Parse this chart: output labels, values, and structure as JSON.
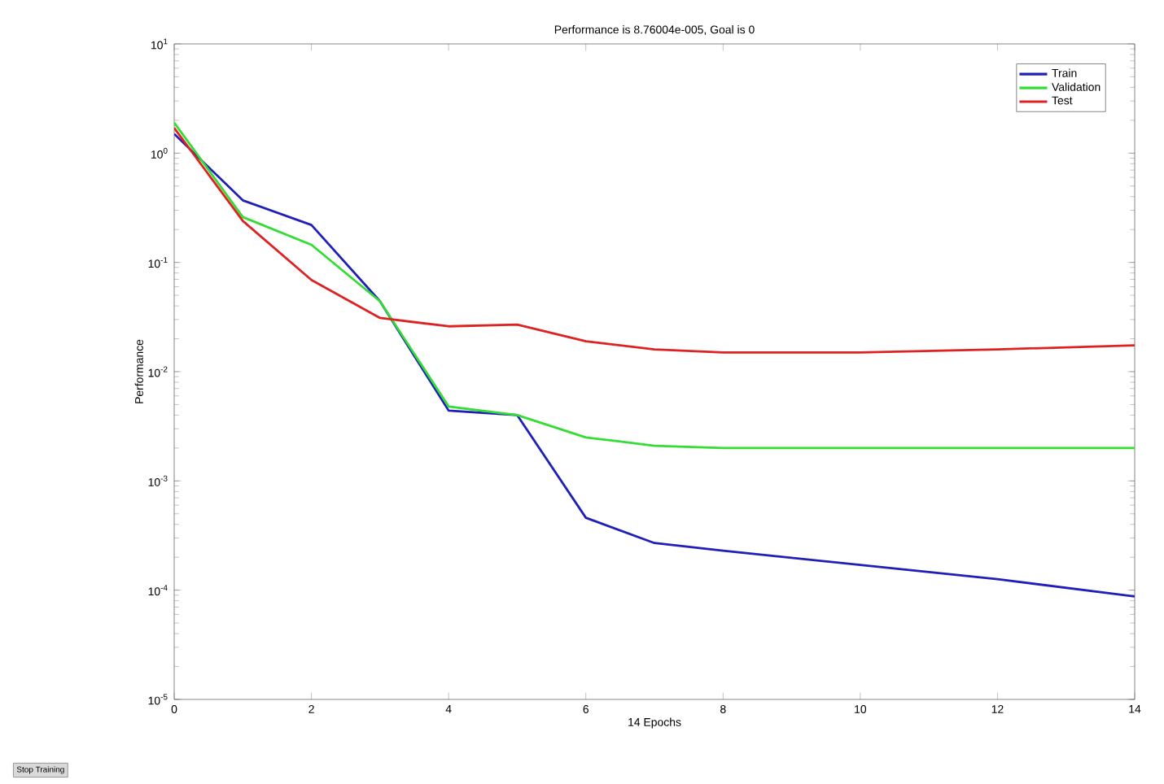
{
  "chart_data": {
    "type": "line",
    "title": "Performance is 8.76004e-005, Goal is 0",
    "xlabel": "14 Epochs",
    "ylabel": "Performance",
    "x": [
      0,
      1,
      2,
      3,
      4,
      5,
      6,
      7,
      8,
      10,
      12,
      14
    ],
    "series": [
      {
        "name": "Train",
        "color": "#2020b8",
        "values": [
          1.5,
          0.37,
          0.22,
          0.044,
          0.0044,
          0.004,
          0.00046,
          0.00027,
          0.00023,
          0.00017,
          0.000126,
          8.76e-05
        ]
      },
      {
        "name": "Validation",
        "color": "#33dd33",
        "values": [
          1.9,
          0.26,
          0.145,
          0.044,
          0.0048,
          0.004,
          0.0025,
          0.0021,
          0.002,
          0.002,
          0.002,
          0.002
        ]
      },
      {
        "name": "Test",
        "color": "#dd2222",
        "values": [
          1.7,
          0.24,
          0.069,
          0.031,
          0.026,
          0.027,
          0.019,
          0.016,
          0.015,
          0.015,
          0.016,
          0.0174
        ]
      }
    ],
    "log": "y",
    "grid": false,
    "legend": "top right",
    "marker": "none",
    "line_style": "solid",
    "xlim": [
      0,
      14
    ],
    "xticks": [
      0,
      2,
      4,
      6,
      8,
      10,
      12,
      14
    ],
    "ylim": [
      1e-05,
      10
    ],
    "yticks": [
      {
        "value": 1e-05,
        "label": "10$^{-5}$"
      },
      {
        "value": 0.0001,
        "label": "10$^{-4}$"
      },
      {
        "value": 0.001,
        "label": "10$^{-3}$"
      },
      {
        "value": 0.01,
        "label": "10$^{-2}$"
      },
      {
        "value": 0.1,
        "label": "10$^{-1}$"
      },
      {
        "value": 1,
        "label": "10$^{0}$"
      },
      {
        "value": 10,
        "label": "10$^{1}$"
      }
    ],
    "annotations": [
      "Stop Training"
    ]
  }
}
